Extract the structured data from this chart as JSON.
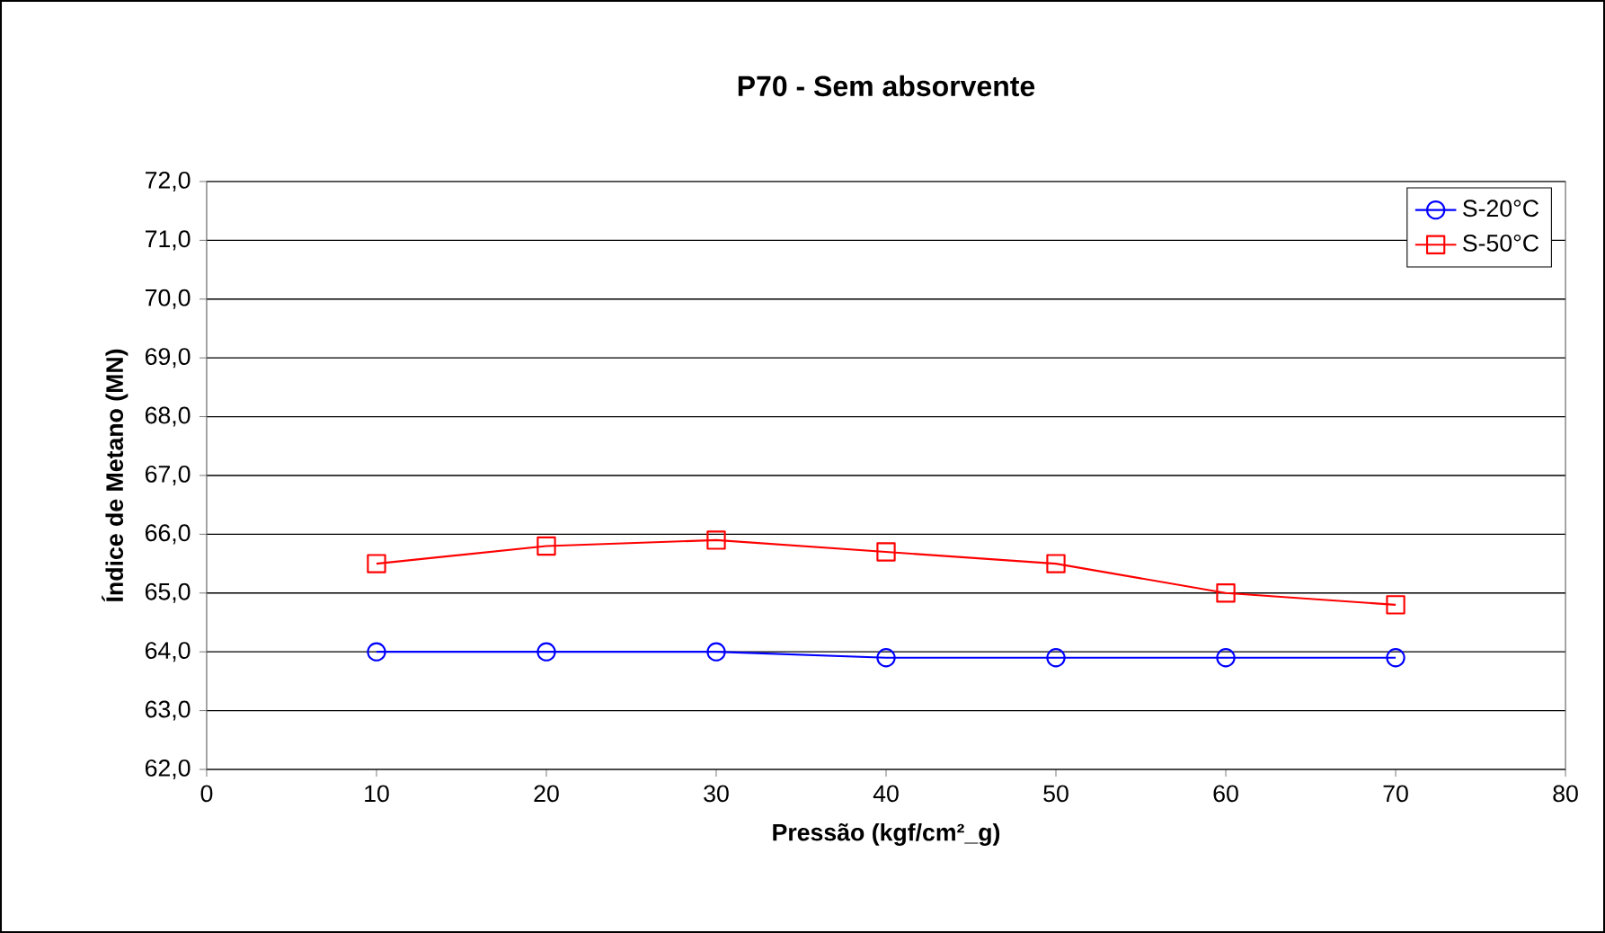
{
  "chart_data": {
    "type": "line",
    "title": "P70 - Sem absorvente",
    "xlabel": "Pressão (kgf/cm²_g)",
    "ylabel": "Índice de Metano (MN)",
    "x": [
      10,
      20,
      30,
      40,
      50,
      60,
      70
    ],
    "series": [
      {
        "name": "S-20°C",
        "color": "#0000ff",
        "marker": "circle",
        "values": [
          64.0,
          64.0,
          64.0,
          63.9,
          63.9,
          63.9,
          63.9
        ]
      },
      {
        "name": "S-50°C",
        "color": "#ff0000",
        "marker": "square",
        "values": [
          65.5,
          65.8,
          65.9,
          65.7,
          65.5,
          65.0,
          64.8
        ]
      }
    ],
    "xlim": [
      0,
      80
    ],
    "xticks": [
      0,
      10,
      20,
      30,
      40,
      50,
      60,
      70,
      80
    ],
    "ylim": [
      62,
      72
    ],
    "yticks": [
      {
        "value": 62,
        "label": "62,0"
      },
      {
        "value": 63,
        "label": "63,0"
      },
      {
        "value": 64,
        "label": "64,0"
      },
      {
        "value": 65,
        "label": "65,0"
      },
      {
        "value": 66,
        "label": "66,0"
      },
      {
        "value": 67,
        "label": "67,0"
      },
      {
        "value": 68,
        "label": "68,0"
      },
      {
        "value": 69,
        "label": "69,0"
      },
      {
        "value": 70,
        "label": "70,0"
      },
      {
        "value": 71,
        "label": "71,0"
      },
      {
        "value": 72,
        "label": "72,0"
      }
    ],
    "grid": "y",
    "legend": "top right"
  }
}
